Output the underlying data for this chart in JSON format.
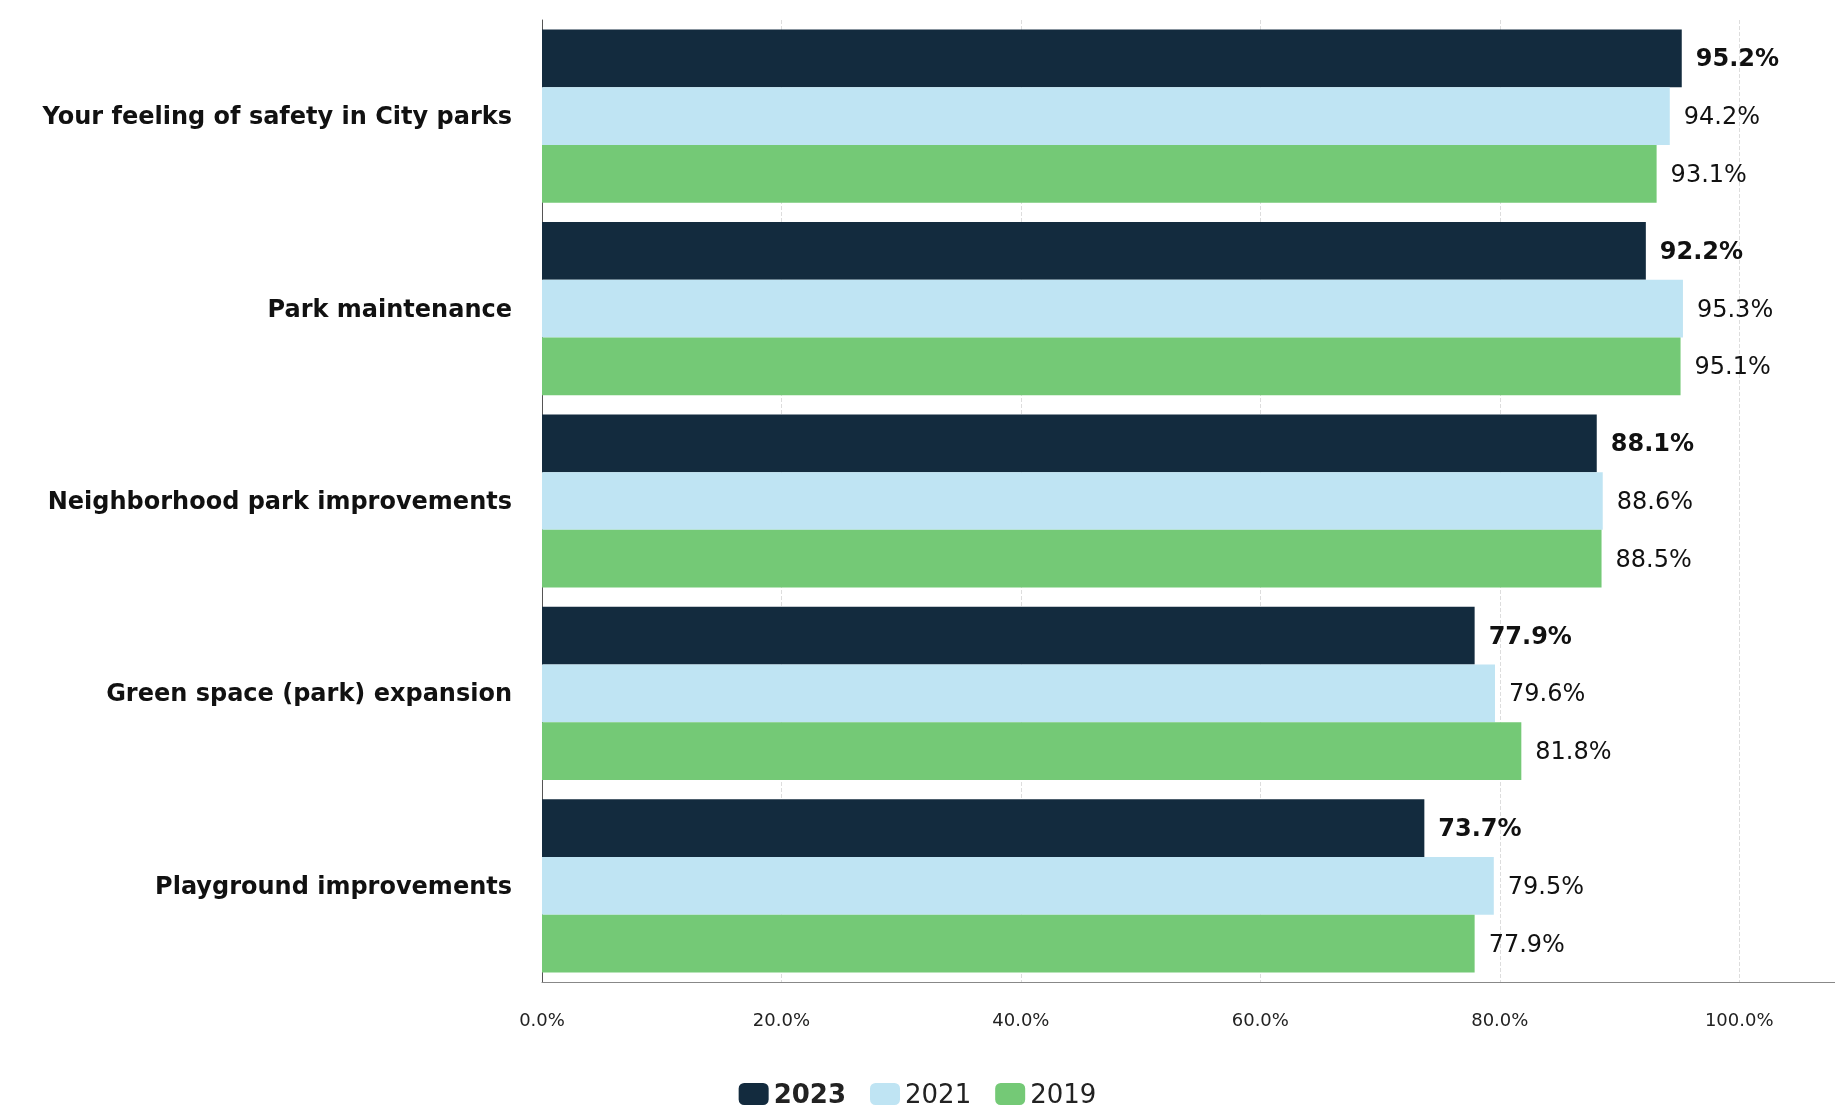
{
  "chart_data": {
    "type": "bar",
    "orientation": "horizontal",
    "categories": [
      "Your feeling of safety in City parks",
      "Park maintenance",
      "Neighborhood park improvements",
      "Green space (park) expansion",
      "Playground improvements"
    ],
    "series": [
      {
        "name": "2023",
        "color": "#132b3e",
        "values": [
          95.2,
          92.2,
          88.1,
          77.9,
          73.7
        ],
        "value_labels": [
          "95.2%",
          "92.2%",
          "88.1%",
          "77.9%",
          "73.7%"
        ]
      },
      {
        "name": "2021",
        "color": "#bfe4f3",
        "values": [
          94.2,
          95.3,
          88.6,
          79.6,
          79.5
        ],
        "value_labels": [
          "94.2%",
          "95.3%",
          "88.6%",
          "79.6%",
          "79.5%"
        ]
      },
      {
        "name": "2019",
        "color": "#74c976",
        "values": [
          93.1,
          95.1,
          88.5,
          81.8,
          77.9
        ],
        "value_labels": [
          "93.1%",
          "95.1%",
          "88.5%",
          "81.8%",
          "77.9%"
        ]
      }
    ],
    "xlim": [
      0,
      108
    ],
    "xticks": [
      {
        "value": 0,
        "label": "0.0%"
      },
      {
        "value": 20,
        "label": "20.0%"
      },
      {
        "value": 40,
        "label": "40.0%"
      },
      {
        "value": 60,
        "label": "60.0%"
      },
      {
        "value": 80,
        "label": "80.0%"
      },
      {
        "value": 100,
        "label": "100.0%"
      }
    ],
    "grid": "x",
    "legend": "bottom"
  }
}
